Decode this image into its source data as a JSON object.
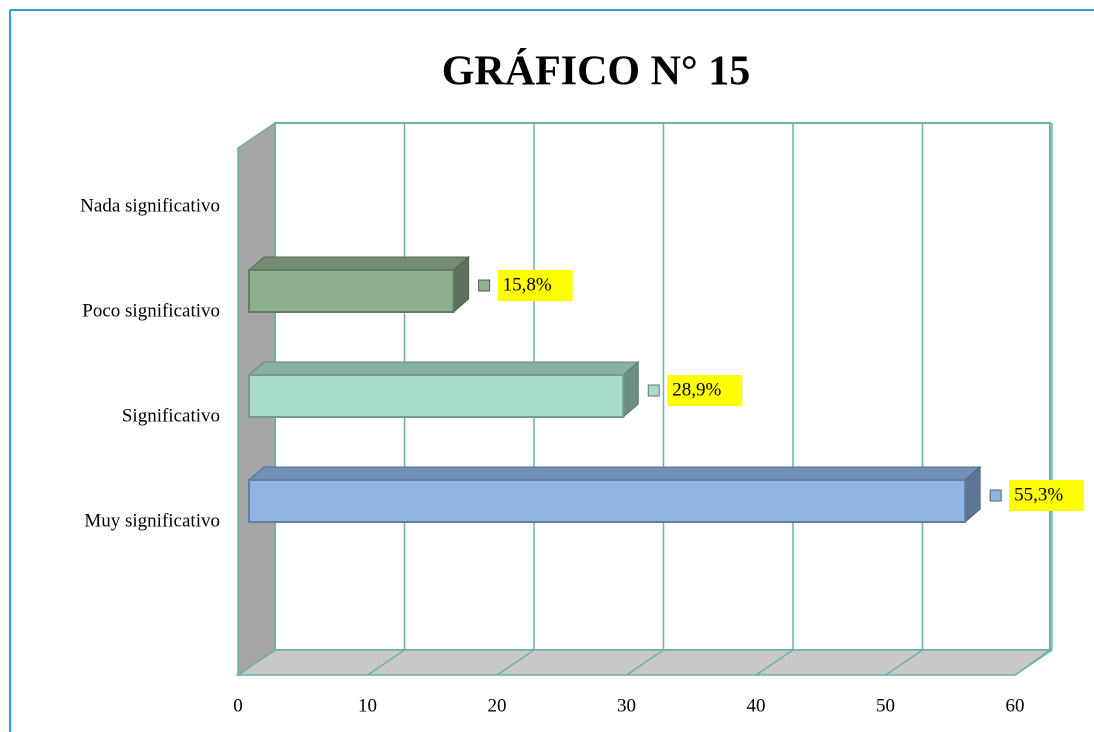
{
  "chart_data": {
    "type": "bar3d_horizontal",
    "title": "GRÁFICO N° 15",
    "categories": [
      "Nada significativo",
      "Poco significativo",
      "Significativo",
      "Muy significativo"
    ],
    "values": [
      null,
      15.8,
      28.9,
      55.3
    ],
    "value_labels": [
      null,
      "15,8%",
      "28,9%",
      "55,3%"
    ],
    "colors": [
      "#9dbf9d",
      "#8fb08f",
      "#a8dcc8",
      "#8fb4e3"
    ],
    "xlim": [
      0,
      60
    ],
    "xticks": [
      0,
      10,
      20,
      30,
      40,
      50,
      60
    ],
    "grid": true
  }
}
